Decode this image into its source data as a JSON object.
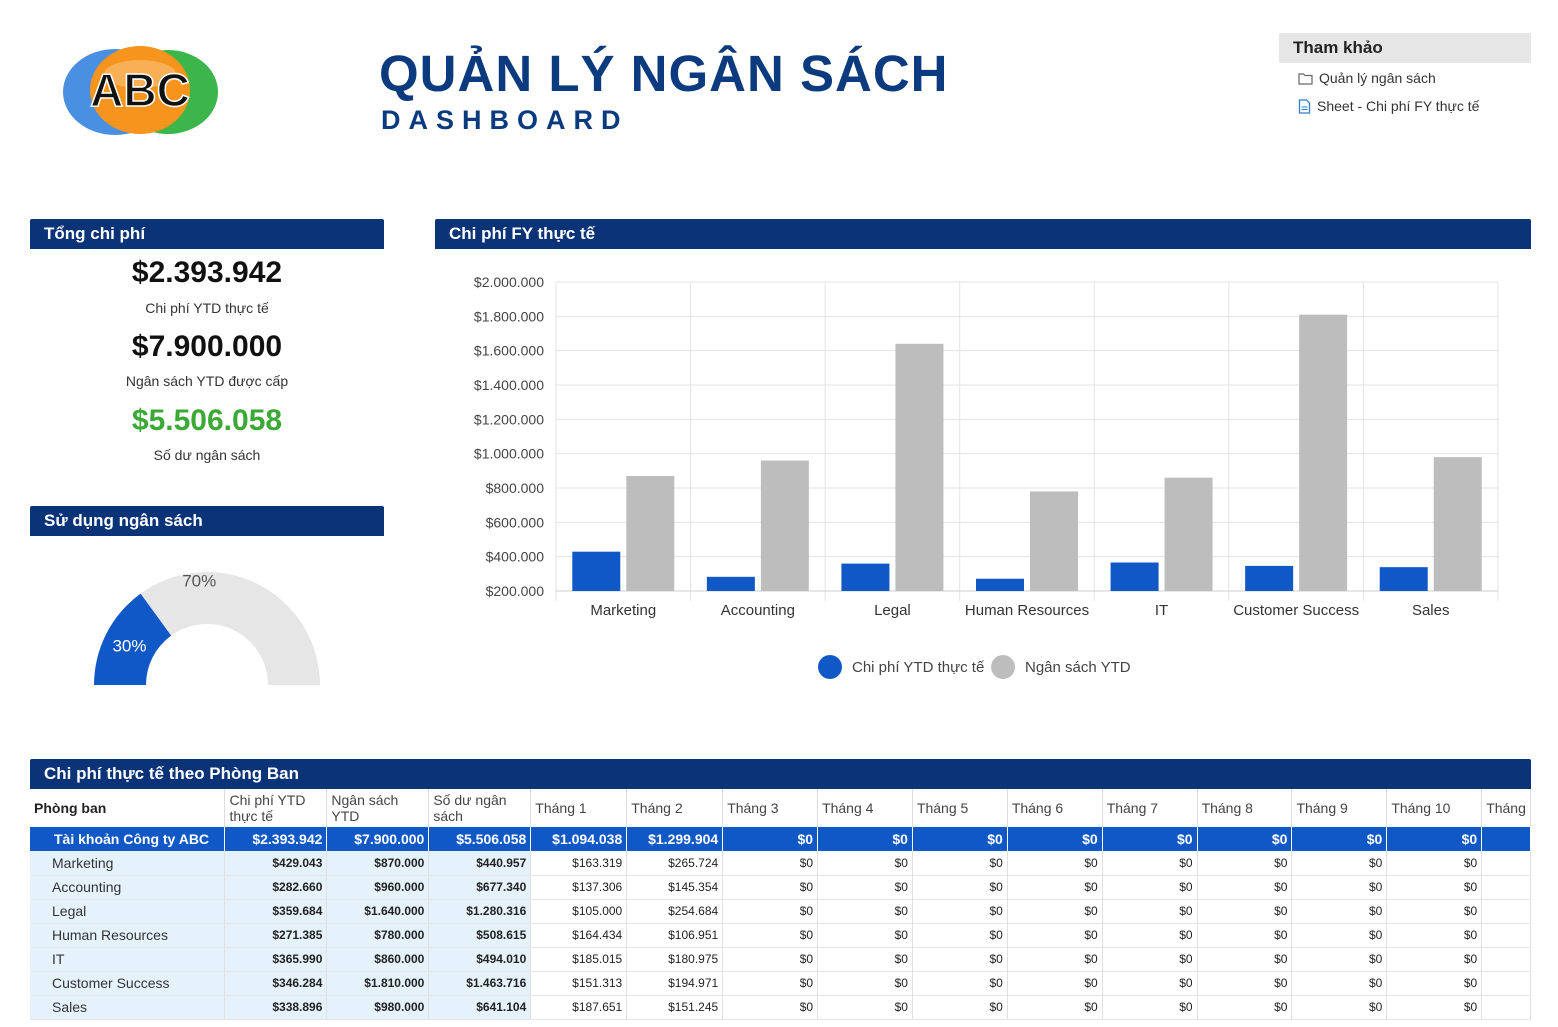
{
  "header": {
    "logo_text": "ABC",
    "title": "QUẢN LÝ NGÂN SÁCH",
    "subtitle": "DASHBOARD"
  },
  "reference": {
    "title": "Tham khảo",
    "links": [
      {
        "label": "Quản lý ngân sách",
        "icon": "folder-icon"
      },
      {
        "label": "Sheet - Chi phí FY thực tế",
        "icon": "sheet-icon"
      }
    ]
  },
  "total_cost": {
    "title": "Tổng chi phí",
    "actual_value": "$2.393.942",
    "actual_label": "Chi phí YTD thực tế",
    "budget_value": "$7.900.000",
    "budget_label": "Ngân sách YTD được cấp",
    "balance_value": "$5.506.058",
    "balance_label": "Số dư ngân sách",
    "balance_color": "#3aaa35"
  },
  "usage": {
    "title": "Sử dụng ngân sách",
    "used_percent": 30,
    "used_label": "30%",
    "remaining_label": "70%",
    "used_color": "#1158c7",
    "remaining_color": "#e6e6e6"
  },
  "chart_data": {
    "type": "bar",
    "title": "Chi phí FY thực tế",
    "categories": [
      "Marketing",
      "Accounting",
      "Legal",
      "Human Resources",
      "IT",
      "Customer Success",
      "Sales"
    ],
    "series": [
      {
        "name": "Chi phí YTD thực tế",
        "color": "#1158c7",
        "values": [
          429043,
          282660,
          359684,
          271385,
          365990,
          346284,
          338896
        ]
      },
      {
        "name": "Ngân sách YTD",
        "color": "#bdbdbd",
        "values": [
          870000,
          960000,
          1640000,
          780000,
          860000,
          1810000,
          980000
        ]
      }
    ],
    "ylim": [
      200000,
      2000000
    ],
    "yticks": [
      200000,
      400000,
      600000,
      800000,
      1000000,
      1200000,
      1400000,
      1600000,
      1800000,
      2000000
    ],
    "ytick_labels": [
      "$200.000",
      "$400.000",
      "$600.000",
      "$800.000",
      "$1.000.000",
      "$1.200.000",
      "$1.400.000",
      "$1.600.000",
      "$1.800.000",
      "$2.000.000"
    ],
    "grid": true,
    "legend": "bottom"
  },
  "table": {
    "title": "Chi phí thực tế theo Phòng Ban",
    "headers": [
      "Phòng ban",
      "Chi phí YTD thực tế",
      "Ngân sách YTD",
      "Số dư ngân sách",
      "Tháng 1",
      "Tháng 2",
      "Tháng 3",
      "Tháng 4",
      "Tháng 5",
      "Tháng 6",
      "Tháng 7",
      "Tháng 8",
      "Tháng 9",
      "Tháng 10",
      "Tháng"
    ],
    "total_row": [
      "Tài khoản Công ty ABC",
      "$2.393.942",
      "$7.900.000",
      "$5.506.058",
      "$1.094.038",
      "$1.299.904",
      "$0",
      "$0",
      "$0",
      "$0",
      "$0",
      "$0",
      "$0",
      "$0",
      ""
    ],
    "rows": [
      [
        "Marketing",
        "$429.043",
        "$870.000",
        "$440.957",
        "$163.319",
        "$265.724",
        "$0",
        "$0",
        "$0",
        "$0",
        "$0",
        "$0",
        "$0",
        "$0",
        ""
      ],
      [
        "Accounting",
        "$282.660",
        "$960.000",
        "$677.340",
        "$137.306",
        "$145.354",
        "$0",
        "$0",
        "$0",
        "$0",
        "$0",
        "$0",
        "$0",
        "$0",
        ""
      ],
      [
        "Legal",
        "$359.684",
        "$1.640.000",
        "$1.280.316",
        "$105.000",
        "$254.684",
        "$0",
        "$0",
        "$0",
        "$0",
        "$0",
        "$0",
        "$0",
        "$0",
        ""
      ],
      [
        "Human Resources",
        "$271.385",
        "$780.000",
        "$508.615",
        "$164.434",
        "$106.951",
        "$0",
        "$0",
        "$0",
        "$0",
        "$0",
        "$0",
        "$0",
        "$0",
        ""
      ],
      [
        "IT",
        "$365.990",
        "$860.000",
        "$494.010",
        "$185.015",
        "$180.975",
        "$0",
        "$0",
        "$0",
        "$0",
        "$0",
        "$0",
        "$0",
        "$0",
        ""
      ],
      [
        "Customer Success",
        "$346.284",
        "$1.810.000",
        "$1.463.716",
        "$151.313",
        "$194.971",
        "$0",
        "$0",
        "$0",
        "$0",
        "$0",
        "$0",
        "$0",
        "$0",
        ""
      ],
      [
        "Sales",
        "$338.896",
        "$980.000",
        "$641.104",
        "$187.651",
        "$151.245",
        "$0",
        "$0",
        "$0",
        "$0",
        "$0",
        "$0",
        "$0",
        "$0",
        ""
      ]
    ]
  }
}
